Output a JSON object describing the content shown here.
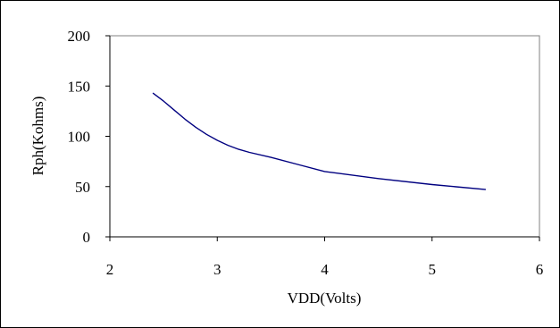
{
  "chart_data": {
    "type": "line",
    "title": "",
    "xlabel": "VDD(Volts)",
    "ylabel": "Rph(Kohms)",
    "xlim": [
      2,
      6
    ],
    "ylim": [
      0,
      200
    ],
    "x_ticks": [
      "2",
      "3",
      "4",
      "5",
      "6"
    ],
    "y_ticks": [
      "0",
      "50",
      "100",
      "150",
      "200"
    ],
    "grid": false,
    "legend": "none",
    "series": [
      {
        "color": "#000080",
        "x": [
          2.4,
          2.5,
          2.6,
          2.7,
          2.8,
          2.9,
          3.0,
          3.1,
          3.2,
          3.3,
          3.5,
          3.75,
          4.0,
          4.5,
          5.0,
          5.5
        ],
        "y": [
          143,
          135,
          126,
          117,
          109,
          102,
          96,
          91,
          87,
          84,
          79,
          72,
          65,
          58,
          52,
          47
        ]
      }
    ]
  }
}
